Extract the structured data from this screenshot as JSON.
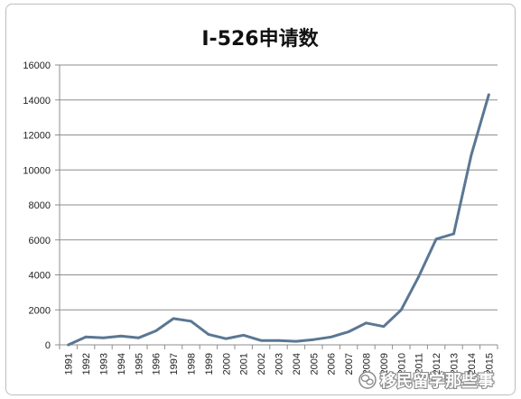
{
  "chart_data": {
    "type": "line",
    "title": "I-526申请数",
    "categories": [
      "1991",
      "1992",
      "1993",
      "1994",
      "1995",
      "1996",
      "1997",
      "1998",
      "1999",
      "2000",
      "2001",
      "2002",
      "2003",
      "2004",
      "2005",
      "2006",
      "2007",
      "2008",
      "2009",
      "2010",
      "2011",
      "2012",
      "2013",
      "2014",
      "2015"
    ],
    "series": [
      {
        "values": [
          0,
          450,
          400,
          500,
          400,
          800,
          1500,
          1350,
          600,
          350,
          550,
          250,
          250,
          200,
          300,
          450,
          750,
          1250,
          1050,
          2000,
          3900,
          6050,
          6350,
          10850,
          14300
        ]
      }
    ],
    "ylim": [
      0,
      16000
    ],
    "yticks": [
      0,
      2000,
      4000,
      6000,
      8000,
      10000,
      12000,
      14000,
      16000
    ],
    "xlabel": "",
    "ylabel": "",
    "grid": true,
    "legend": "none"
  },
  "colors": {
    "line": "#5a7793",
    "grid": "#8e8e8e",
    "axis": "#8e8e8e",
    "frame": "#bdbdbd"
  },
  "watermark": {
    "icon": "wechat-icon",
    "text": "移民留学那些事"
  }
}
